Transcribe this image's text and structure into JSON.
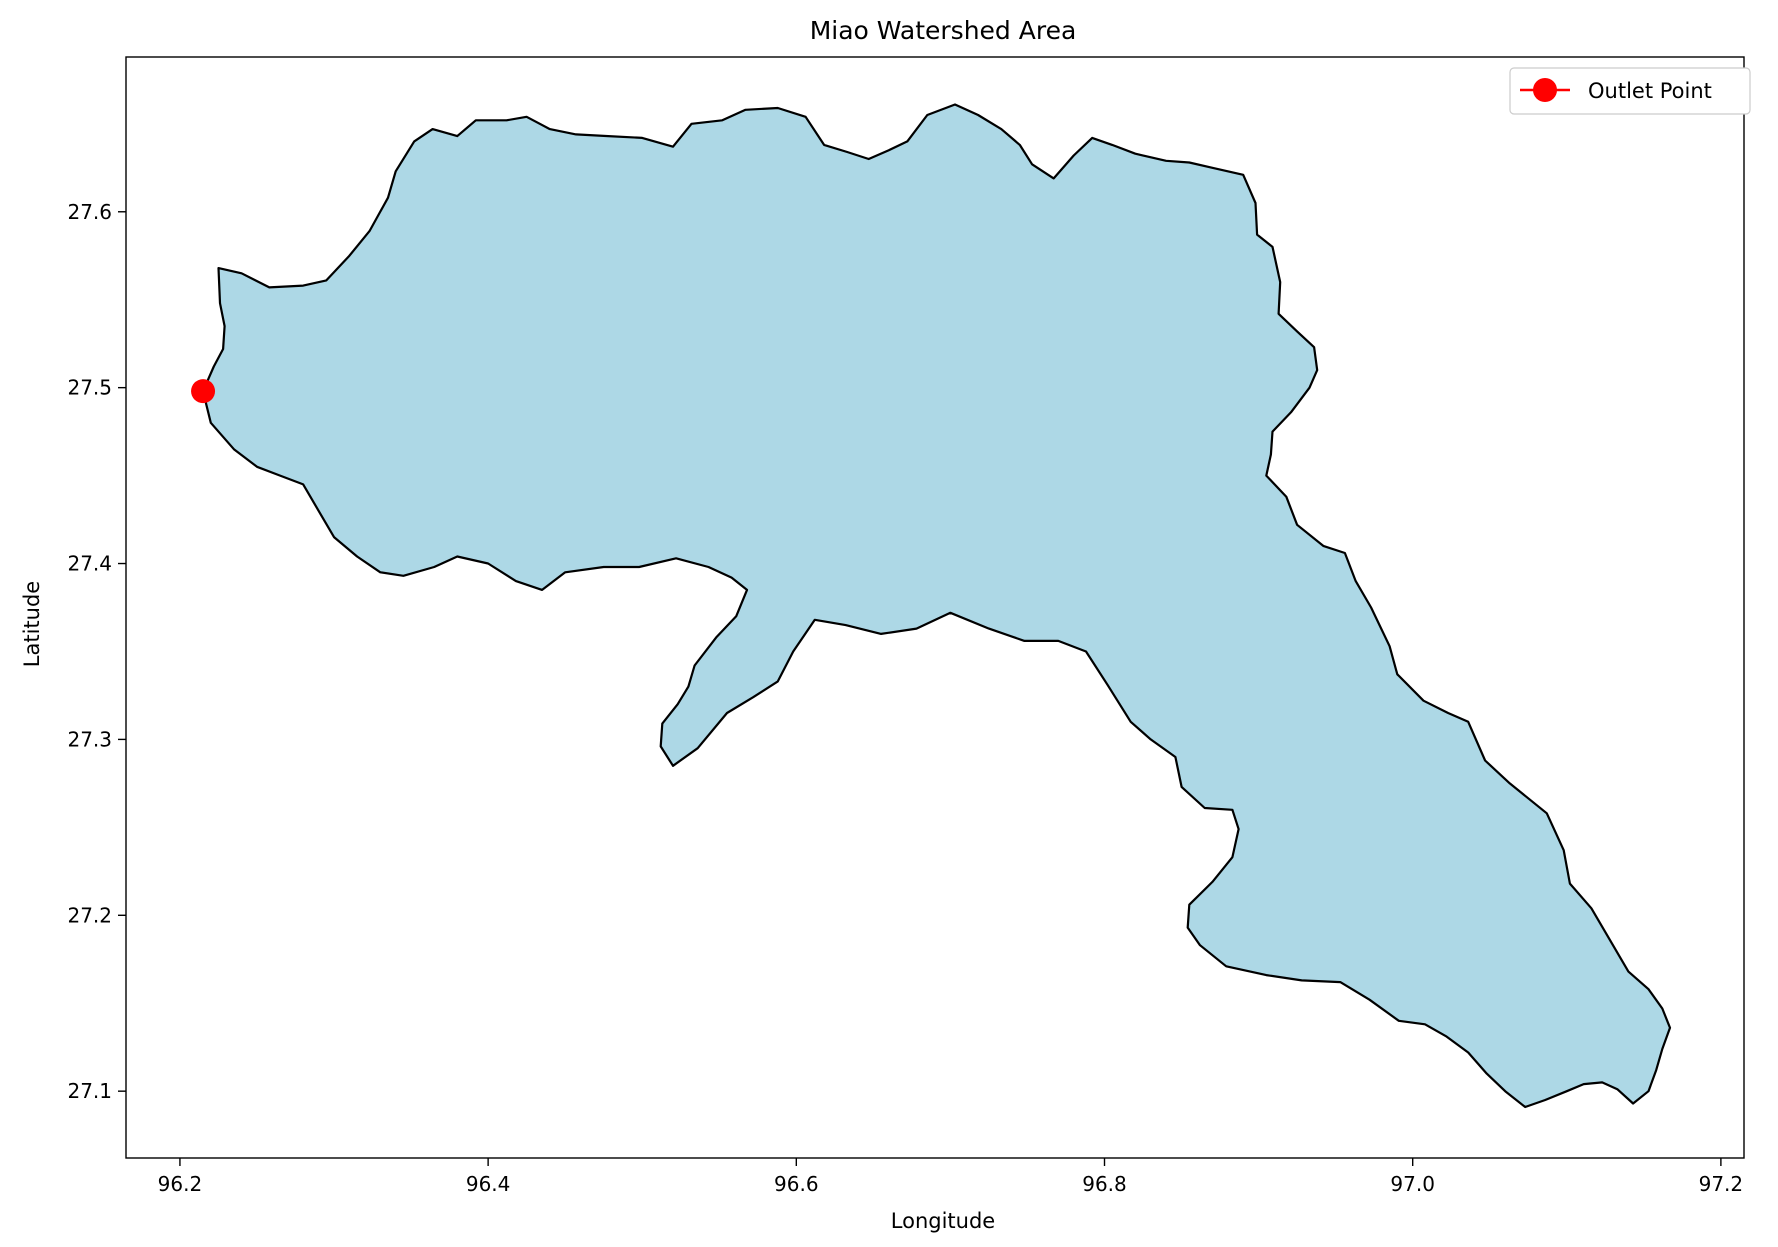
{
  "chart_data": {
    "type": "map",
    "title": "Miao Watershed Area",
    "xlabel": "Longitude",
    "ylabel": "Latitude",
    "xlim": [
      96.165,
      97.215
    ],
    "ylim": [
      27.062,
      27.688
    ],
    "xticks": [
      96.2,
      96.4,
      96.6,
      96.8,
      97.0,
      97.2
    ],
    "xtick_labels": [
      "96.2",
      "96.4",
      "96.6",
      "96.8",
      "97.0",
      "97.2"
    ],
    "yticks": [
      27.1,
      27.2,
      27.3,
      27.4,
      27.5,
      27.6
    ],
    "ytick_labels": [
      "27.1",
      "27.2",
      "27.3",
      "27.4",
      "27.5",
      "27.6"
    ],
    "grid": false,
    "legend_position": "top-right",
    "watershed": {
      "fill": "#add8e6",
      "edge": "#000000",
      "boundary": [
        [
          96.215,
          27.498
        ],
        [
          96.222,
          27.512
        ],
        [
          96.228,
          27.522
        ],
        [
          96.229,
          27.535
        ],
        [
          96.226,
          27.548
        ],
        [
          96.225,
          27.568
        ],
        [
          96.24,
          27.565
        ],
        [
          96.258,
          27.557
        ],
        [
          96.28,
          27.558
        ],
        [
          96.295,
          27.561
        ],
        [
          96.31,
          27.575
        ],
        [
          96.323,
          27.589
        ],
        [
          96.335,
          27.608
        ],
        [
          96.34,
          27.623
        ],
        [
          96.352,
          27.64
        ],
        [
          96.364,
          27.647
        ],
        [
          96.38,
          27.643
        ],
        [
          96.392,
          27.652
        ],
        [
          96.412,
          27.652
        ],
        [
          96.425,
          27.654
        ],
        [
          96.44,
          27.647
        ],
        [
          96.457,
          27.644
        ],
        [
          96.478,
          27.643
        ],
        [
          96.5,
          27.642
        ],
        [
          96.52,
          27.637
        ],
        [
          96.532,
          27.65
        ],
        [
          96.552,
          27.652
        ],
        [
          96.567,
          27.658
        ],
        [
          96.588,
          27.659
        ],
        [
          96.606,
          27.654
        ],
        [
          96.618,
          27.638
        ],
        [
          96.633,
          27.634
        ],
        [
          96.647,
          27.63
        ],
        [
          96.66,
          27.635
        ],
        [
          96.672,
          27.64
        ],
        [
          96.685,
          27.655
        ],
        [
          96.703,
          27.661
        ],
        [
          96.718,
          27.655
        ],
        [
          96.733,
          27.647
        ],
        [
          96.745,
          27.638
        ],
        [
          96.753,
          27.627
        ],
        [
          96.767,
          27.619
        ],
        [
          96.78,
          27.632
        ],
        [
          96.792,
          27.642
        ],
        [
          96.805,
          27.638
        ],
        [
          96.82,
          27.633
        ],
        [
          96.84,
          27.629
        ],
        [
          96.855,
          27.628
        ],
        [
          96.87,
          27.625
        ],
        [
          96.89,
          27.621
        ],
        [
          96.898,
          27.605
        ],
        [
          96.899,
          27.587
        ],
        [
          96.909,
          27.58
        ],
        [
          96.914,
          27.56
        ],
        [
          96.913,
          27.542
        ],
        [
          96.925,
          27.532
        ],
        [
          96.936,
          27.523
        ],
        [
          96.938,
          27.51
        ],
        [
          96.933,
          27.5
        ],
        [
          96.921,
          27.486
        ],
        [
          96.909,
          27.475
        ],
        [
          96.908,
          27.462
        ],
        [
          96.905,
          27.45
        ],
        [
          96.918,
          27.438
        ],
        [
          96.925,
          27.422
        ],
        [
          96.942,
          27.41
        ],
        [
          96.956,
          27.406
        ],
        [
          96.963,
          27.39
        ],
        [
          96.973,
          27.375
        ],
        [
          96.985,
          27.353
        ],
        [
          96.99,
          27.337
        ],
        [
          97.007,
          27.322
        ],
        [
          97.023,
          27.315
        ],
        [
          97.036,
          27.31
        ],
        [
          97.047,
          27.288
        ],
        [
          97.063,
          27.275
        ],
        [
          97.087,
          27.258
        ],
        [
          97.098,
          27.237
        ],
        [
          97.102,
          27.218
        ],
        [
          97.116,
          27.204
        ],
        [
          97.128,
          27.186
        ],
        [
          97.14,
          27.168
        ],
        [
          97.153,
          27.158
        ],
        [
          97.162,
          27.147
        ],
        [
          97.167,
          27.136
        ],
        [
          97.162,
          27.124
        ],
        [
          97.158,
          27.112
        ],
        [
          97.153,
          27.1
        ],
        [
          97.143,
          27.093
        ],
        [
          97.133,
          27.101
        ],
        [
          97.123,
          27.105
        ],
        [
          97.111,
          27.104
        ],
        [
          97.1,
          27.1
        ],
        [
          97.086,
          27.095
        ],
        [
          97.073,
          27.091
        ],
        [
          97.06,
          27.1
        ],
        [
          97.048,
          27.11
        ],
        [
          97.036,
          27.122
        ],
        [
          97.022,
          27.131
        ],
        [
          97.008,
          27.138
        ],
        [
          96.991,
          27.14
        ],
        [
          96.972,
          27.152
        ],
        [
          96.953,
          27.162
        ],
        [
          96.928,
          27.163
        ],
        [
          96.905,
          27.166
        ],
        [
          96.879,
          27.171
        ],
        [
          96.862,
          27.183
        ],
        [
          96.854,
          27.193
        ],
        [
          96.855,
          27.206
        ],
        [
          96.87,
          27.219
        ],
        [
          96.883,
          27.233
        ],
        [
          96.887,
          27.249
        ],
        [
          96.883,
          27.26
        ],
        [
          96.865,
          27.261
        ],
        [
          96.85,
          27.273
        ],
        [
          96.846,
          27.29
        ],
        [
          96.83,
          27.3
        ],
        [
          96.817,
          27.31
        ],
        [
          96.802,
          27.331
        ],
        [
          96.788,
          27.35
        ],
        [
          96.77,
          27.356
        ],
        [
          96.748,
          27.356
        ],
        [
          96.725,
          27.363
        ],
        [
          96.7,
          27.372
        ],
        [
          96.678,
          27.363
        ],
        [
          96.655,
          27.36
        ],
        [
          96.632,
          27.365
        ],
        [
          96.612,
          27.368
        ],
        [
          96.598,
          27.35
        ],
        [
          96.588,
          27.333
        ],
        [
          96.572,
          27.324
        ],
        [
          96.555,
          27.315
        ],
        [
          96.536,
          27.295
        ],
        [
          96.52,
          27.285
        ],
        [
          96.512,
          27.296
        ],
        [
          96.513,
          27.309
        ],
        [
          96.523,
          27.32
        ],
        [
          96.53,
          27.33
        ],
        [
          96.534,
          27.342
        ],
        [
          96.548,
          27.358
        ],
        [
          96.561,
          27.37
        ],
        [
          96.568,
          27.385
        ],
        [
          96.558,
          27.392
        ],
        [
          96.543,
          27.398
        ],
        [
          96.522,
          27.403
        ],
        [
          96.498,
          27.398
        ],
        [
          96.475,
          27.398
        ],
        [
          96.45,
          27.395
        ],
        [
          96.435,
          27.385
        ],
        [
          96.418,
          27.39
        ],
        [
          96.4,
          27.4
        ],
        [
          96.38,
          27.404
        ],
        [
          96.365,
          27.398
        ],
        [
          96.345,
          27.393
        ],
        [
          96.33,
          27.395
        ],
        [
          96.315,
          27.404
        ],
        [
          96.3,
          27.415
        ],
        [
          96.29,
          27.43
        ],
        [
          96.28,
          27.445
        ],
        [
          96.265,
          27.45
        ],
        [
          96.25,
          27.455
        ],
        [
          96.235,
          27.465
        ],
        [
          96.22,
          27.48
        ],
        [
          96.215,
          27.498
        ]
      ]
    },
    "series": [
      {
        "name": "Outlet Point",
        "type": "point",
        "color": "#ff0000",
        "x": [
          96.215
        ],
        "y": [
          27.498
        ]
      }
    ]
  }
}
